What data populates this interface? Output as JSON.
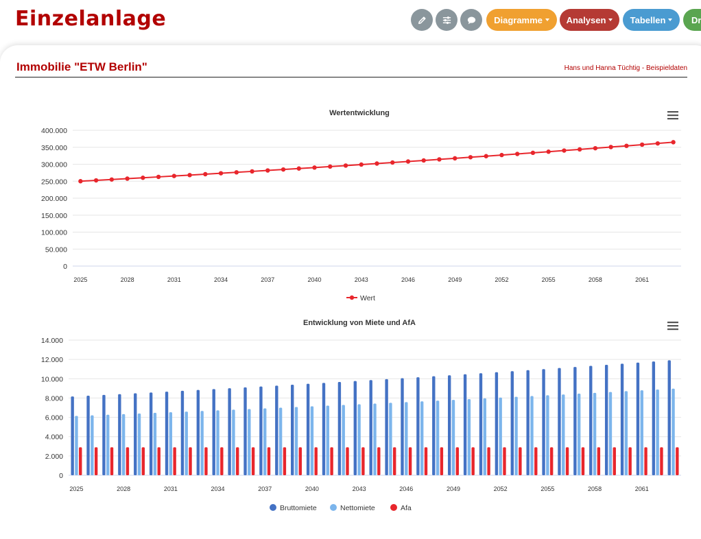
{
  "app": {
    "title": "Einzelanlage"
  },
  "toolbar": {
    "icons": [
      {
        "name": "edit-icon",
        "color": "#8a969c"
      },
      {
        "name": "sliders-icon",
        "color": "#8a969c"
      },
      {
        "name": "comment-icon",
        "color": "#8a969c"
      }
    ],
    "menus": [
      {
        "label": "Diagramme",
        "color": "#f0a030"
      },
      {
        "label": "Analysen",
        "color": "#b53a34"
      },
      {
        "label": "Tabellen",
        "color": "#4a9bd1"
      },
      {
        "label": "Dr",
        "color": "#5aa550"
      }
    ]
  },
  "card": {
    "title": "Immobilie \"ETW Berlin\"",
    "subtitle": "Hans und Hanna Tüchtig - Beispieldaten"
  },
  "chart_data": [
    {
      "type": "line",
      "title": "Wertentwicklung",
      "x": [
        2025,
        2026,
        2027,
        2028,
        2029,
        2030,
        2031,
        2032,
        2033,
        2034,
        2035,
        2036,
        2037,
        2038,
        2039,
        2040,
        2041,
        2042,
        2043,
        2044,
        2045,
        2046,
        2047,
        2048,
        2049,
        2050,
        2051,
        2052,
        2053,
        2054,
        2055,
        2056,
        2057,
        2058,
        2059,
        2060,
        2061,
        2062,
        2063
      ],
      "x_tick_labels": [
        "2025",
        "2028",
        "2031",
        "2034",
        "2037",
        "2040",
        "2043",
        "2046",
        "2049",
        "2052",
        "2055",
        "2058",
        "2061"
      ],
      "y_tick_labels": [
        "0",
        "50.000",
        "100.000",
        "150.000",
        "200.000",
        "250.000",
        "300.000",
        "350.000",
        "400.000"
      ],
      "ylim": [
        0,
        400000
      ],
      "grid": true,
      "legend_position": "bottom",
      "colors": {
        "Wert": "#e8262c"
      },
      "series": [
        {
          "name": "Wert",
          "values": [
            250000,
            252500,
            255025,
            257575,
            260151,
            262753,
            265380,
            268034,
            270714,
            273421,
            276155,
            278917,
            281706,
            284523,
            287368,
            290242,
            293144,
            296076,
            299037,
            302027,
            305047,
            308098,
            311179,
            314291,
            317433,
            320608,
            323814,
            327052,
            330322,
            333626,
            336962,
            340332,
            343735,
            347172,
            350644,
            354150,
            357692,
            361269,
            364881
          ]
        }
      ]
    },
    {
      "type": "bar",
      "title": "Entwicklung von Miete und AfA",
      "x": [
        2025,
        2026,
        2027,
        2028,
        2029,
        2030,
        2031,
        2032,
        2033,
        2034,
        2035,
        2036,
        2037,
        2038,
        2039,
        2040,
        2041,
        2042,
        2043,
        2044,
        2045,
        2046,
        2047,
        2048,
        2049,
        2050,
        2051,
        2052,
        2053,
        2054,
        2055,
        2056,
        2057,
        2058,
        2059,
        2060,
        2061,
        2062,
        2063
      ],
      "x_tick_labels": [
        "2025",
        "2028",
        "2031",
        "2034",
        "2037",
        "2040",
        "2043",
        "2046",
        "2049",
        "2052",
        "2055",
        "2058",
        "2061"
      ],
      "y_tick_labels": [
        "0",
        "2.000",
        "4.000",
        "6.000",
        "8.000",
        "10.000",
        "12.000",
        "14.000"
      ],
      "ylim": [
        0,
        14000
      ],
      "grid": true,
      "legend_position": "bottom",
      "colors": {
        "Bruttomiete": "#4472c4",
        "Nettomiete": "#7cb5ec",
        "Afa": "#e8262c"
      },
      "series": [
        {
          "name": "Bruttomiete",
          "values": [
            8160,
            8242,
            8324,
            8407,
            8491,
            8576,
            8662,
            8749,
            8836,
            8925,
            9014,
            9104,
            9195,
            9287,
            9380,
            9474,
            9569,
            9664,
            9761,
            9859,
            9957,
            10057,
            10157,
            10259,
            10361,
            10465,
            10570,
            10675,
            10782,
            10890,
            10999,
            11109,
            11220,
            11332,
            11445,
            11560,
            11675,
            11792,
            11910
          ]
        },
        {
          "name": "Nettomiete",
          "values": [
            6150,
            6212,
            6274,
            6336,
            6400,
            6464,
            6528,
            6594,
            6660,
            6726,
            6793,
            6861,
            6930,
            6999,
            7069,
            7140,
            7211,
            7283,
            7356,
            7430,
            7504,
            7579,
            7655,
            7732,
            7809,
            7887,
            7966,
            8046,
            8126,
            8207,
            8289,
            8372,
            8456,
            8541,
            8626,
            8712,
            8799,
            8887,
            8976
          ]
        },
        {
          "name": "Afa",
          "values": [
            2900,
            2900,
            2900,
            2900,
            2900,
            2900,
            2900,
            2900,
            2900,
            2900,
            2900,
            2900,
            2900,
            2900,
            2900,
            2900,
            2900,
            2900,
            2900,
            2900,
            2900,
            2900,
            2900,
            2900,
            2900,
            2900,
            2900,
            2900,
            2900,
            2900,
            2900,
            2900,
            2900,
            2900,
            2900,
            2900,
            2900,
            2900,
            2900
          ]
        }
      ]
    }
  ]
}
